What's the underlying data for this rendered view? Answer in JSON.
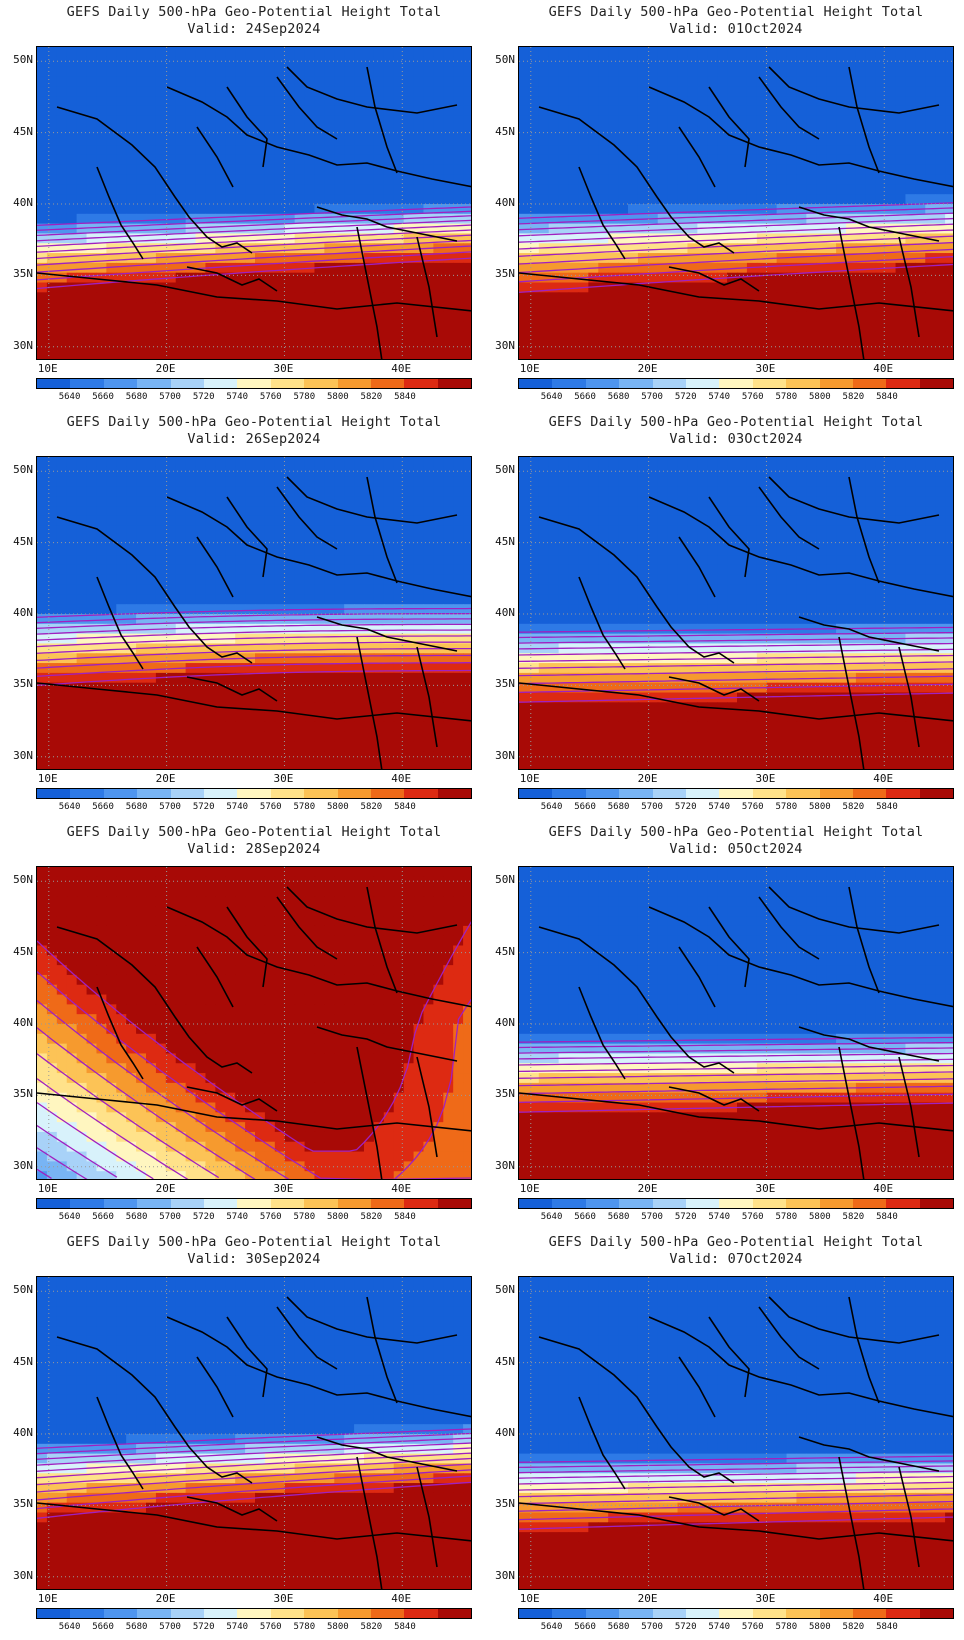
{
  "panels": [
    {
      "line1": "GEFS Daily 500-hPa Geo-Potential Height Total",
      "line2": "Valid: 24Sep2024",
      "pattern": "ridge-east"
    },
    {
      "line1": "GEFS Daily 500-hPa Geo-Potential Height Total",
      "line2": "Valid: 01Oct2024",
      "pattern": "tilted"
    },
    {
      "line1": "GEFS Daily 500-hPa Geo-Potential Height Total",
      "line2": "Valid: 26Sep2024",
      "pattern": "ridge-west"
    },
    {
      "line1": "GEFS Daily 500-hPa Geo-Potential Height Total",
      "line2": "Valid: 03Oct2024",
      "pattern": "zonal"
    },
    {
      "line1": "GEFS Daily 500-hPa Geo-Potential Height Total",
      "line2": "Valid: 28Sep2024",
      "pattern": "strong-ridge"
    },
    {
      "line1": "GEFS Daily 500-hPa Geo-Potential Height Total",
      "line2": "Valid: 05Oct2024",
      "pattern": "zonal"
    },
    {
      "line1": "GEFS Daily 500-hPa Geo-Potential Height Total",
      "line2": "Valid: 30Sep2024",
      "pattern": "trough-west"
    },
    {
      "line1": "GEFS Daily 500-hPa Geo-Potential Height Total",
      "line2": "Valid: 07Oct2024",
      "pattern": "zonal-tight"
    }
  ],
  "lat_labels": [
    "50N",
    "45N",
    "40N",
    "35N",
    "30N"
  ],
  "lon_labels": [
    "10E",
    "20E",
    "30E",
    "40E"
  ],
  "colorbar": {
    "labels": [
      "5640",
      "5660",
      "5680",
      "5700",
      "5720",
      "5740",
      "5760",
      "5780",
      "5800",
      "5820",
      "5840"
    ],
    "colors": [
      "#1560d8",
      "#2e7ae6",
      "#4e95ef",
      "#78b4f4",
      "#a8d2f8",
      "#d8f2fb",
      "#fff6c0",
      "#ffe28a",
      "#fcc356",
      "#f69a2e",
      "#ef6a18",
      "#dd2a12",
      "#a80a06"
    ]
  },
  "contour_color": "#a020c0",
  "coast_color": "#000000"
}
